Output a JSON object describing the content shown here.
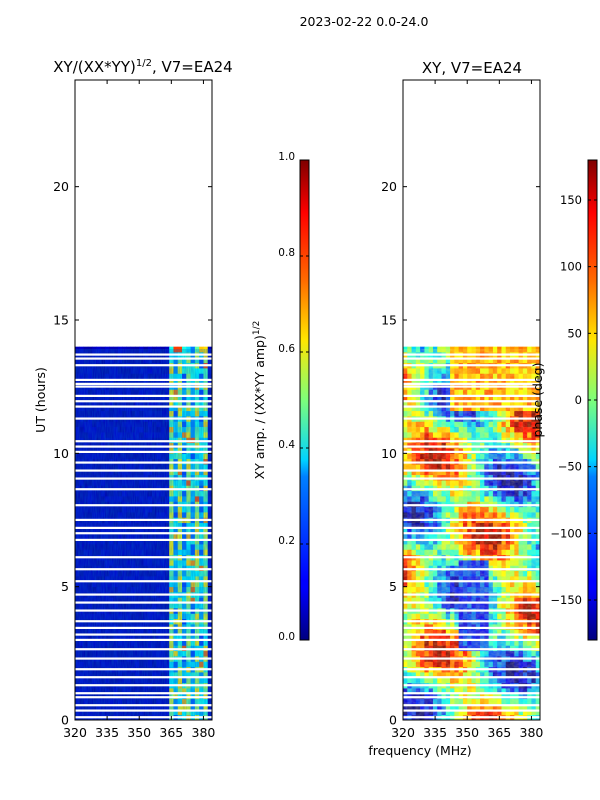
{
  "figure": {
    "suptitle": "2023-02-22 0.0-24.0",
    "shared_xlabel": "frequency (MHz)"
  },
  "chart_data": [
    {
      "type": "heatmap",
      "title": "XY/(XX*YY)",
      "title_superscript": "1/2",
      "title_suffix": ", V7=EA24",
      "xlabel": "",
      "ylabel": "UT (hours)",
      "xlim": [
        320,
        384
      ],
      "ylim": [
        0,
        24
      ],
      "xticks": [
        320,
        335,
        350,
        365,
        380
      ],
      "yticks": [
        0,
        5,
        10,
        15,
        20
      ],
      "data_extent_hours": [
        0,
        13.9
      ],
      "colorbar": {
        "label": "XY amp. / (XX*YY amp)",
        "label_superscript": "1/2",
        "range": [
          0.0,
          1.0
        ],
        "ticks": [
          "0.0",
          "0.2",
          "0.4",
          "0.6",
          "0.8",
          "1.0"
        ],
        "tick_values": [
          0.0,
          0.2,
          0.4,
          0.6,
          0.8,
          1.0
        ]
      }
    },
    {
      "type": "heatmap",
      "title": "XY, V7=EA24",
      "xlabel": "frequency (MHz)",
      "ylabel": "",
      "xlim": [
        320,
        384
      ],
      "ylim": [
        0,
        24
      ],
      "xticks": [
        320,
        335,
        350,
        365,
        380
      ],
      "yticks": [
        0,
        5,
        10,
        15,
        20
      ],
      "data_extent_hours": [
        0,
        13.9
      ],
      "colorbar": {
        "label": "phase (deg)",
        "range": [
          -180,
          180
        ],
        "ticks": [
          "−150",
          "−100",
          "−50",
          "0",
          "50",
          "100",
          "150"
        ],
        "tick_values": [
          -150,
          -100,
          -50,
          0,
          50,
          100,
          150
        ]
      }
    }
  ],
  "gap_hours": [
    0.1,
    0.35,
    0.55,
    0.85,
    1.0,
    1.3,
    1.6,
    1.9,
    2.3,
    2.65,
    3.0,
    3.2,
    3.45,
    3.7,
    4.1,
    4.4,
    4.7,
    5.2,
    5.65,
    6.1,
    6.75,
    7.0,
    7.2,
    7.5,
    8.05,
    8.65,
    9.05,
    9.35,
    9.65,
    10.05,
    10.25,
    10.45,
    11.3,
    11.75,
    11.95,
    12.15,
    12.5,
    12.6,
    12.75,
    13.3,
    13.55,
    13.7
  ]
}
